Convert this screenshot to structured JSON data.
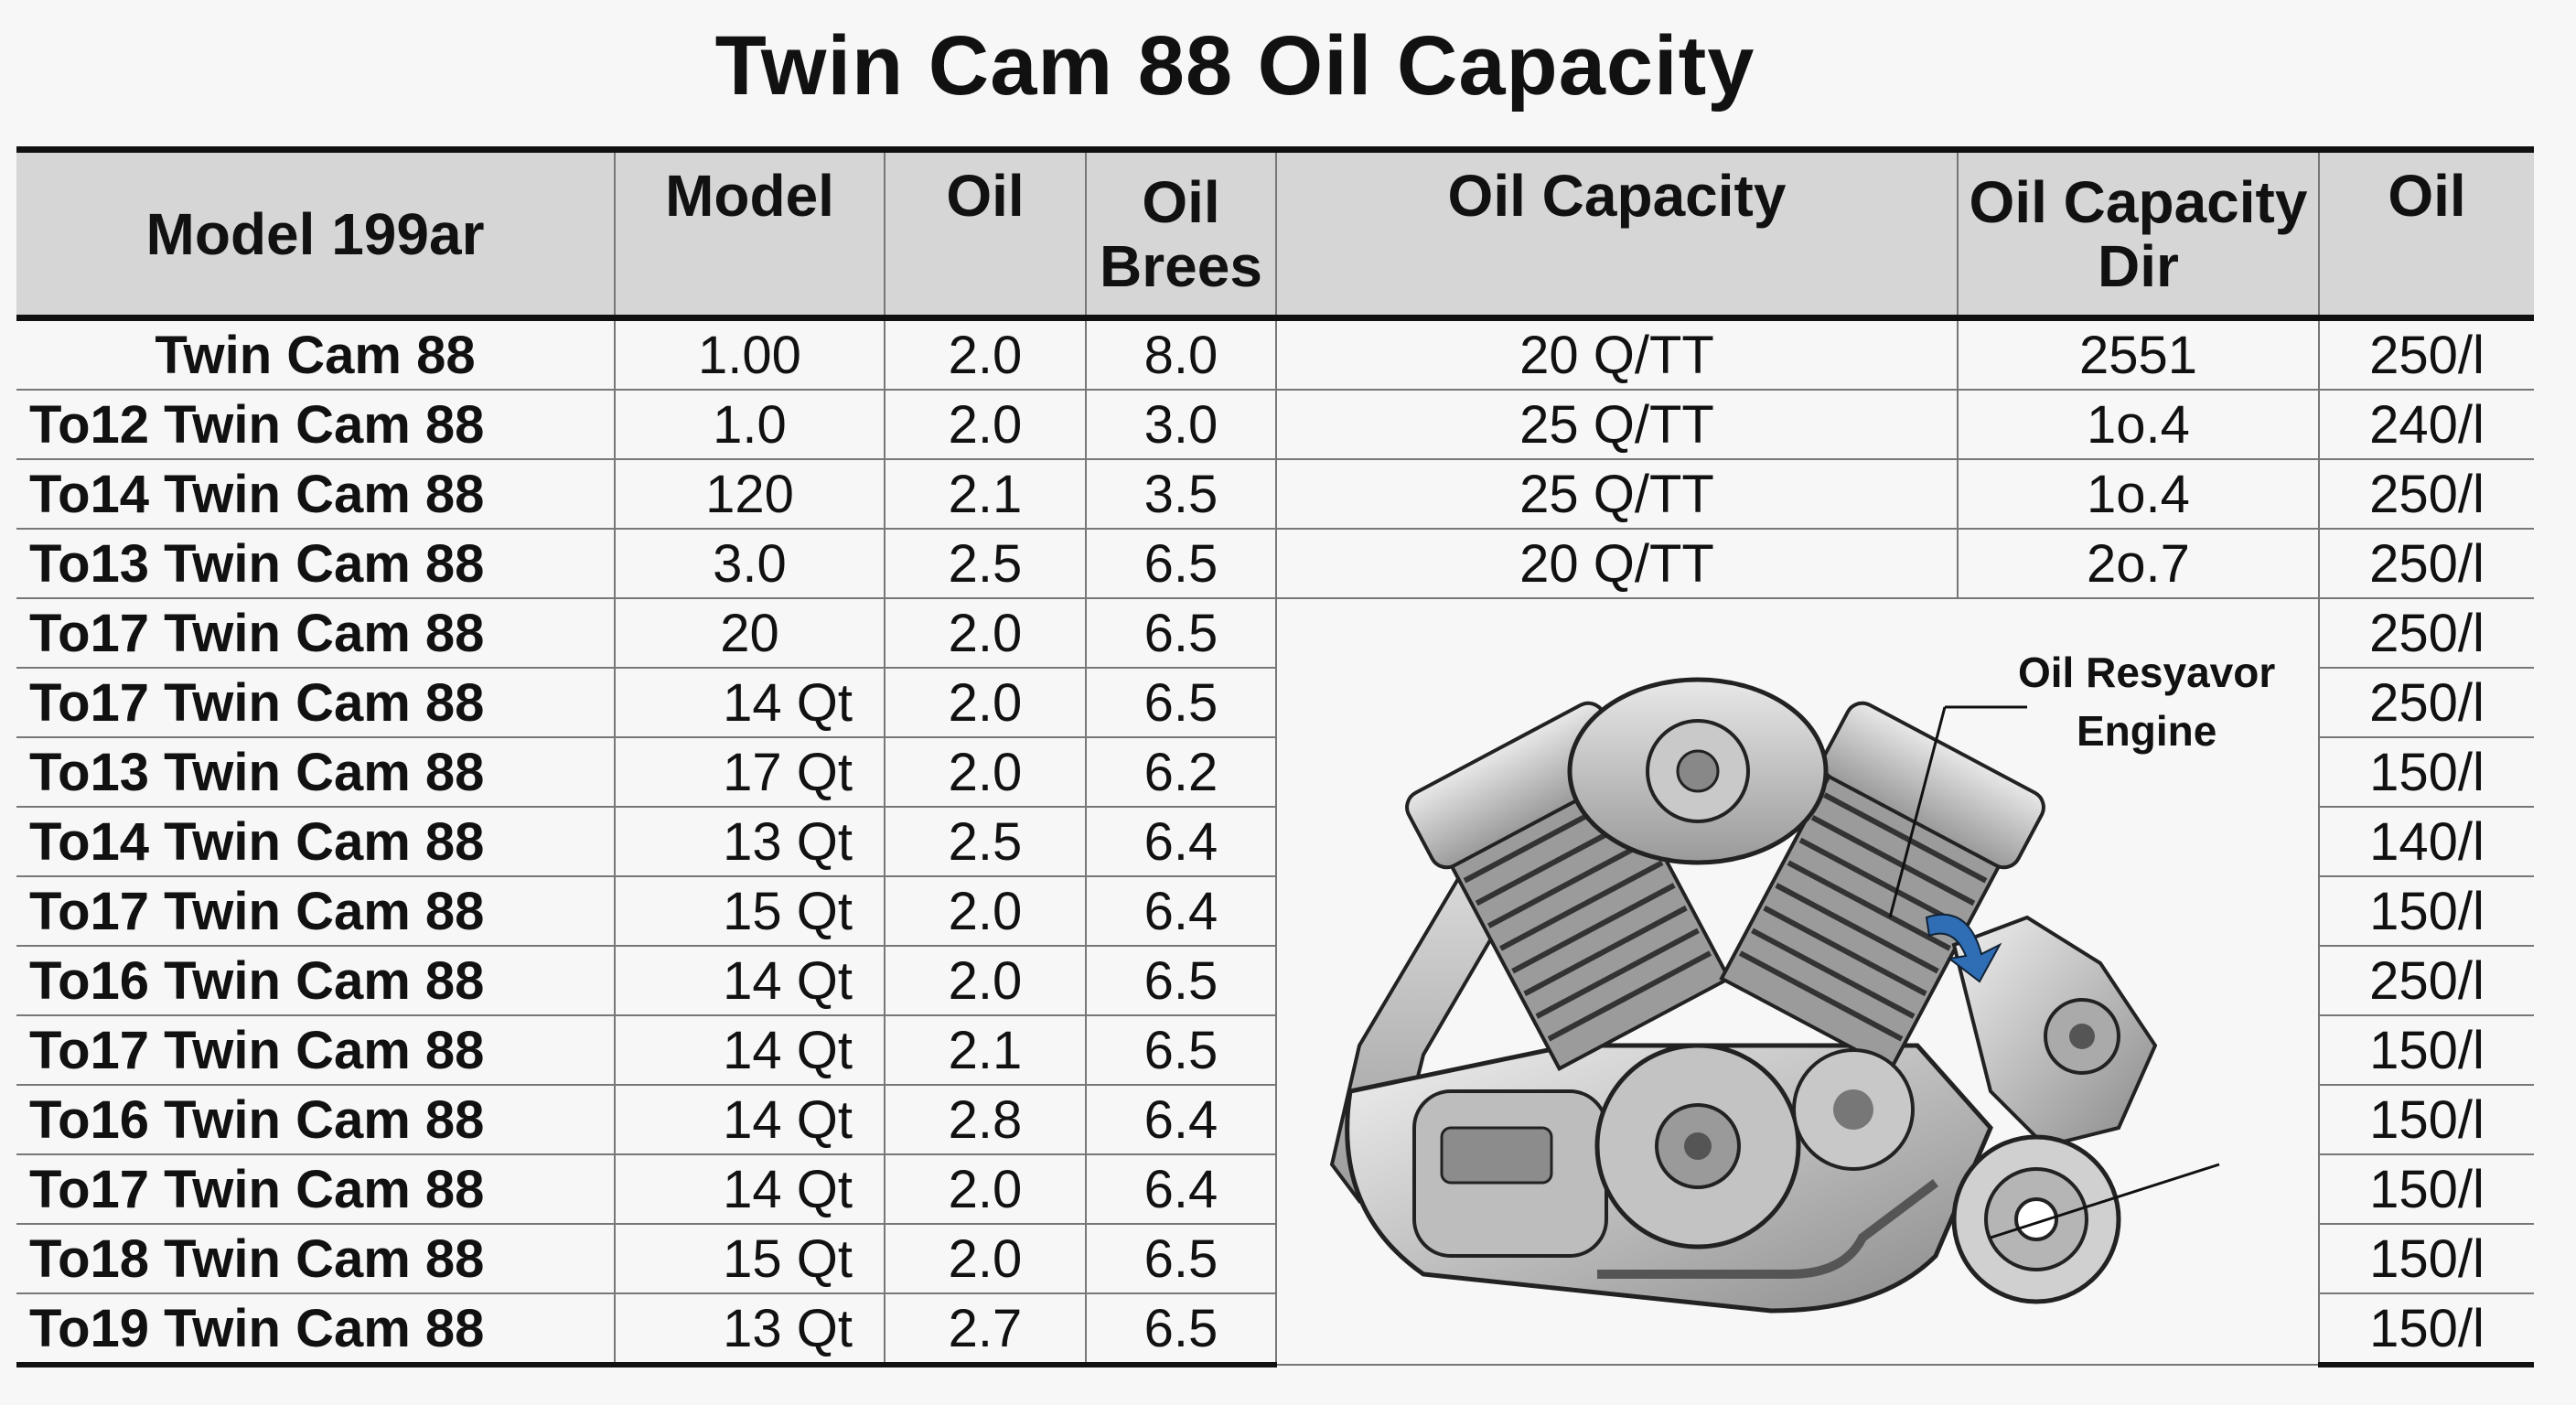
{
  "title": "Twin Cam 88 Oil Capacity",
  "headers": {
    "col1": "Model 199ar",
    "col2": "Model",
    "col3": "Oil",
    "col4_line1": "Oil",
    "col4_line2": "Brees",
    "col5": "Oil Capacity",
    "col6_line1": "Oil Capacity",
    "col6_line2": "Dir",
    "col7": "Oil"
  },
  "rows": [
    {
      "model": "Twin Cam 88",
      "model_val": "1.00",
      "oil": "2.0",
      "brees": "8.0",
      "capacity": "20 Q/TT",
      "dir": "2551",
      "oil2": "250/l"
    },
    {
      "model": "To12  Twin Cam 88",
      "model_val": "1.0",
      "oil": "2.0",
      "brees": "3.0",
      "capacity": "25 Q/TT",
      "dir": "1o.4",
      "oil2": "240/l"
    },
    {
      "model": "To14  Twin Cam 88",
      "model_val": "120",
      "oil": "2.1",
      "brees": "3.5",
      "capacity": "25 Q/TT",
      "dir": "1o.4",
      "oil2": "250/l"
    },
    {
      "model": "To13  Twin Cam 88",
      "model_val": "3.0",
      "oil": "2.5",
      "brees": "6.5",
      "capacity": "20 Q/TT",
      "dir": "2o.7",
      "oil2": "250/l"
    },
    {
      "model": "To17  Twin Cam 88",
      "model_val": "20",
      "oil": "2.0",
      "brees": "6.5",
      "oil2": "250/l"
    },
    {
      "model": "To17  Twin Cam 88",
      "model_val": "14 Qt",
      "oil": "2.0",
      "brees": "6.5",
      "oil2": "250/l"
    },
    {
      "model": "To13  Twin Cam 88",
      "model_val": "17 Qt",
      "oil": "2.0",
      "brees": "6.2",
      "oil2": "150/l"
    },
    {
      "model": "To14  Twin Cam 88",
      "model_val": "13 Qt",
      "oil": "2.5",
      "brees": "6.4",
      "oil2": "140/l"
    },
    {
      "model": "To17  Twin Cam 88",
      "model_val": "15 Qt",
      "oil": "2.0",
      "brees": "6.4",
      "oil2": "150/l"
    },
    {
      "model": "To16  Twin Cam 88",
      "model_val": "14 Qt",
      "oil": "2.0",
      "brees": "6.5",
      "oil2": "250/l"
    },
    {
      "model": "To17  Twin Cam 88",
      "model_val": "14 Qt",
      "oil": "2.1",
      "brees": "6.5",
      "oil2": "150/l"
    },
    {
      "model": "To16  Twin Cam 88",
      "model_val": "14 Qt",
      "oil": "2.8",
      "brees": "6.4",
      "oil2": "150/l"
    },
    {
      "model": "To17  Twin Cam 88",
      "model_val": "14 Qt",
      "oil": "2.0",
      "brees": "6.4",
      "oil2": "150/l"
    },
    {
      "model": "To18  Twin Cam 88",
      "model_val": "15 Qt",
      "oil": "2.0",
      "brees": "6.5",
      "oil2": "150/l"
    },
    {
      "model": "To19  Twin Cam 88",
      "model_val": "13 Qt",
      "oil": "2.7",
      "brees": "6.5",
      "oil2": "150/l"
    }
  ],
  "engine_label_line1": "Oil Resyavor",
  "engine_label_line2": "Engine",
  "engine_icon": "v-twin-engine-illustration",
  "colors": {
    "header_bg": "#d6d6d6",
    "arrow_blue": "#2f6db5"
  }
}
